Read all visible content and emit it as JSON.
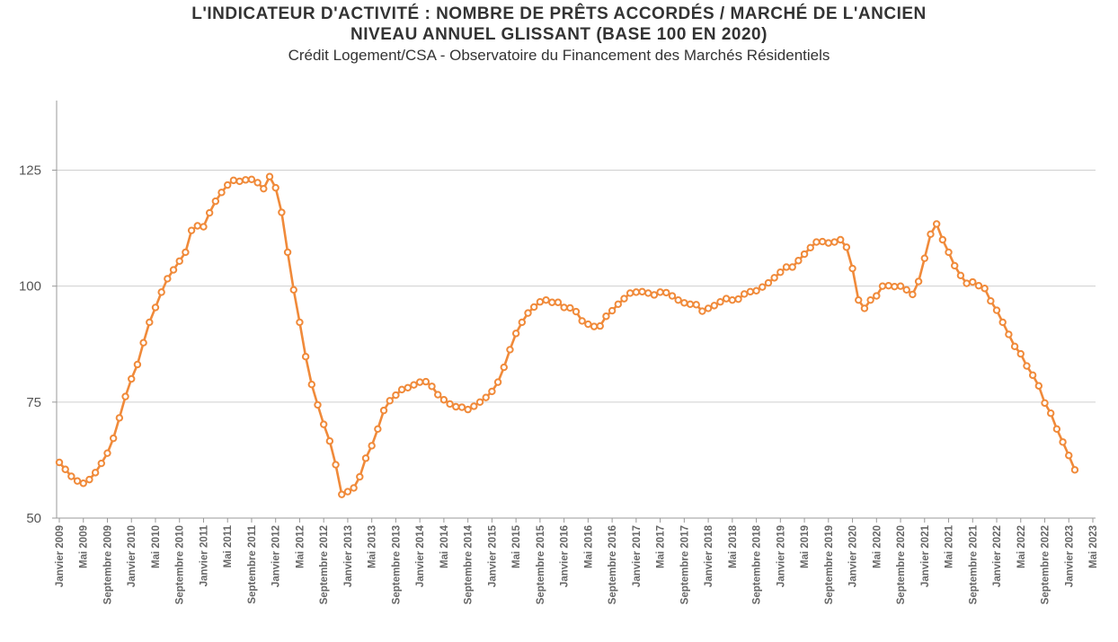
{
  "chart_data": {
    "type": "line",
    "title_line1": "L'INDICATEUR D'ACTIVITÉ : NOMBRE DE PRÊTS ACCORDÉS / MARCHÉ DE L'ANCIEN",
    "title_line2": "NIVEAU ANNUEL GLISSANT (BASE 100 EN 2020)",
    "subtitle": "Crédit Logement/CSA - Observatoire du Financement des Marchés Résidentiels",
    "ylim": [
      50,
      140
    ],
    "yticks": [
      50,
      75,
      100,
      125
    ],
    "grid": true,
    "line_color": "#f08a3a",
    "x_tick_labels": [
      "Janvier 2009",
      "Mai 2009",
      "Septembre 2009",
      "Janvier 2010",
      "Mai 2010",
      "Septembre 2010",
      "Janvier 2011",
      "Mai 2011",
      "Septembre 2011",
      "Janvier 2012",
      "Mai 2012",
      "Septembre 2012",
      "Janvier 2013",
      "Mai 2013",
      "Septembre 2013",
      "Janvier 2014",
      "Mai 2014",
      "Septembre 2014",
      "Janvier 2015",
      "Mai 2015",
      "Septembre 2015",
      "Janvier 2016",
      "Mai 2016",
      "Septembre 2016",
      "Janvier 2017",
      "Mai 2017",
      "Septembre 2017",
      "Janvier 2018",
      "Mai 2018",
      "Septembre 2018",
      "Janvier 2019",
      "Mai 2019",
      "Septembre 2019",
      "Janvier 2020",
      "Mai 2020",
      "Septembre 2020",
      "Janvier 2021",
      "Mai 2021",
      "Septembre 2021",
      "Janvier 2022",
      "Mai 2022",
      "Septembre 2022",
      "Janvier 2023",
      "Mai 2023"
    ],
    "x_start": "Janvier 2009",
    "frequency": "monthly",
    "series": [
      {
        "values": [
          62,
          60.5,
          59,
          58,
          57.5,
          58.3,
          59.8,
          61.8,
          64,
          67.2,
          71.6,
          76.2,
          80,
          83.1,
          87.8,
          92.2,
          95.4,
          98.7,
          101.6,
          103.5,
          105.4,
          107.3,
          112,
          113,
          112.8,
          115.8,
          118.3,
          120.2,
          121.8,
          122.8,
          122.6,
          122.9,
          123,
          122.3,
          121,
          123.6,
          121.2,
          115.9,
          107.3,
          99.2,
          92.2,
          84.8,
          78.8,
          74.4,
          70.2,
          66.6,
          61.5,
          55.1,
          55.7,
          56.5,
          58.9,
          62.9,
          65.6,
          69.2,
          73.2,
          75.3,
          76.5,
          77.7,
          78.1,
          78.7,
          79.3,
          79.4,
          78.4,
          76.6,
          75.5,
          74.6,
          74,
          73.9,
          73.4,
          74.1,
          75,
          76,
          77.3,
          79.3,
          82.5,
          86.3,
          89.8,
          92.2,
          94.2,
          95.5,
          96.6,
          97,
          96.5,
          96.5,
          95.4,
          95.3,
          94.5,
          92.5,
          91.8,
          91.3,
          91.4,
          93.5,
          94.7,
          96.1,
          97.3,
          98.5,
          98.7,
          98.8,
          98.5,
          98.1,
          98.7,
          98.6,
          97.9,
          97,
          96.4,
          96.1,
          96,
          94.6,
          95.2,
          95.8,
          96.6,
          97.3,
          97,
          97.2,
          98.3,
          98.8,
          99,
          99.8,
          100.7,
          101.8,
          103,
          104.1,
          104.1,
          105.5,
          106.9,
          108.3,
          109.5,
          109.6,
          109.3,
          109.5,
          110,
          108.4,
          103.8,
          97,
          95.2,
          97,
          97.9,
          100,
          100.1,
          99.9,
          100,
          99.2,
          98.2,
          101,
          106,
          111.2,
          113.4,
          110,
          107.3,
          104.4,
          102.3,
          100.6,
          100.9,
          100.1,
          99.5,
          96.8,
          94.8,
          92.2,
          89.6,
          87,
          85.4,
          82.8,
          80.8,
          78.5,
          74.8,
          72.6,
          69.2,
          66.4,
          63.5,
          60.4
        ]
      }
    ]
  }
}
